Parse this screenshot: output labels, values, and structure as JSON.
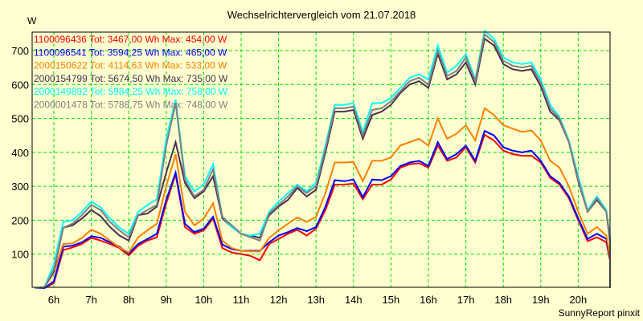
{
  "chart_data": {
    "type": "line",
    "title": "Wechselrichtervergleich vom 21.07.2018",
    "ylabel": "W",
    "xlabel": "",
    "footer": "SunnyReport pinxit",
    "ylim": [
      0,
      750
    ],
    "xlim": [
      5.5,
      20.85
    ],
    "yticks": [
      100,
      200,
      300,
      400,
      500,
      600,
      700
    ],
    "xticks": [
      {
        "value": 6,
        "label": "6h"
      },
      {
        "value": 7,
        "label": "7h"
      },
      {
        "value": 8,
        "label": "8h"
      },
      {
        "value": 9,
        "label": "9h"
      },
      {
        "value": 10,
        "label": "10h"
      },
      {
        "value": 11,
        "label": "11h"
      },
      {
        "value": 12,
        "label": "12h"
      },
      {
        "value": 13,
        "label": "13h"
      },
      {
        "value": 14,
        "label": "14h"
      },
      {
        "value": 15,
        "label": "15h"
      },
      {
        "value": 16,
        "label": "16h"
      },
      {
        "value": 17,
        "label": "17h"
      },
      {
        "value": 18,
        "label": "18h"
      },
      {
        "value": 19,
        "label": "19h"
      },
      {
        "value": 20,
        "label": "20h"
      }
    ],
    "grid": true,
    "legend_position": "top-left",
    "x_start": 5.5,
    "x_step": 0.25,
    "series": [
      {
        "name": "1100096436",
        "legend": "1100096436 Tot: 3467,00 Wh Max: 454,00 W",
        "color": "#ff0000",
        "values": [
          0,
          0,
          15,
          112,
          120,
          130,
          148,
          140,
          130,
          118,
          96,
          125,
          140,
          150,
          250,
          335,
          180,
          160,
          170,
          205,
          118,
          105,
          100,
          95,
          82,
          130,
          145,
          160,
          172,
          155,
          175,
          230,
          305,
          305,
          308,
          262,
          305,
          305,
          320,
          355,
          365,
          368,
          355,
          420,
          375,
          385,
          415,
          370,
          452,
          435,
          405,
          395,
          390,
          390,
          370,
          325,
          305,
          265,
          200,
          138,
          150,
          135,
          82,
          82,
          40,
          2,
          0
        ]
      },
      {
        "name": "1100096541",
        "legend": "1100096541 Tot: 3594,25 Wh Max: 465,00 W",
        "color": "#0000ff",
        "values": [
          0,
          0,
          20,
          122,
          125,
          135,
          153,
          148,
          135,
          122,
          102,
          130,
          145,
          160,
          260,
          340,
          190,
          165,
          175,
          210,
          128,
          115,
          110,
          110,
          110,
          135,
          155,
          165,
          177,
          168,
          180,
          240,
          318,
          315,
          320,
          268,
          320,
          318,
          330,
          360,
          370,
          375,
          360,
          430,
          380,
          395,
          420,
          375,
          463,
          450,
          415,
          405,
          400,
          405,
          375,
          330,
          310,
          270,
          205,
          145,
          160,
          145,
          90,
          90,
          45,
          3,
          0
        ]
      },
      {
        "name": "2000150622",
        "legend": "2000150622 Tot: 4114,63 Wh Max: 533,00 W",
        "color": "#ff8000",
        "values": [
          0,
          3,
          45,
          130,
          132,
          148,
          172,
          160,
          140,
          120,
          105,
          150,
          170,
          190,
          300,
          395,
          225,
          185,
          205,
          250,
          140,
          118,
          110,
          108,
          108,
          148,
          170,
          190,
          208,
          195,
          210,
          280,
          370,
          370,
          372,
          315,
          375,
          375,
          385,
          420,
          430,
          440,
          420,
          500,
          440,
          455,
          480,
          435,
          530,
          510,
          480,
          470,
          460,
          465,
          435,
          375,
          355,
          300,
          225,
          160,
          180,
          155,
          95,
          95,
          50,
          5,
          0
        ]
      },
      {
        "name": "2000154799",
        "legend": "2000154799 Tot: 5674,50 Wh Max: 735,00 W",
        "color": "#4a3050",
        "values": [
          0,
          2,
          50,
          178,
          185,
          205,
          230,
          212,
          180,
          155,
          140,
          215,
          220,
          240,
          340,
          430,
          310,
          265,
          285,
          330,
          205,
          180,
          160,
          155,
          148,
          215,
          240,
          260,
          295,
          270,
          290,
          400,
          520,
          520,
          525,
          440,
          510,
          520,
          540,
          575,
          600,
          610,
          590,
          690,
          615,
          630,
          665,
          600,
          735,
          715,
          660,
          645,
          640,
          645,
          595,
          520,
          495,
          430,
          315,
          225,
          260,
          225,
          135,
          138,
          70,
          5,
          0
        ]
      },
      {
        "name": "2000149892",
        "legend": "2000149892 Tot: 5984,25 Wh Max: 758,00 W",
        "color": "#00ffff",
        "values": [
          0,
          3,
          70,
          195,
          200,
          225,
          255,
          238,
          205,
          178,
          160,
          225,
          245,
          262,
          440,
          555,
          330,
          285,
          305,
          365,
          210,
          180,
          160,
          155,
          160,
          225,
          255,
          280,
          305,
          285,
          310,
          420,
          540,
          540,
          545,
          460,
          545,
          545,
          560,
          590,
          620,
          630,
          615,
          715,
          635,
          655,
          690,
          615,
          758,
          735,
          680,
          665,
          660,
          665,
          615,
          540,
          505,
          435,
          330,
          230,
          270,
          230,
          150,
          150,
          80,
          8,
          0
        ]
      },
      {
        "name": "2000001478",
        "legend": "2000001478 Tot: 5788,75 Wh Max: 748,00 W",
        "color": "#808080",
        "values": [
          0,
          2,
          55,
          178,
          190,
          215,
          245,
          230,
          195,
          170,
          150,
          215,
          230,
          245,
          420,
          545,
          320,
          270,
          290,
          350,
          210,
          185,
          160,
          150,
          140,
          220,
          245,
          270,
          300,
          280,
          300,
          410,
          530,
          530,
          535,
          450,
          525,
          530,
          550,
          580,
          610,
          620,
          600,
          700,
          625,
          640,
          680,
          610,
          748,
          725,
          670,
          655,
          650,
          655,
          605,
          530,
          500,
          430,
          320,
          225,
          265,
          225,
          145,
          145,
          75,
          6,
          0
        ]
      }
    ]
  }
}
